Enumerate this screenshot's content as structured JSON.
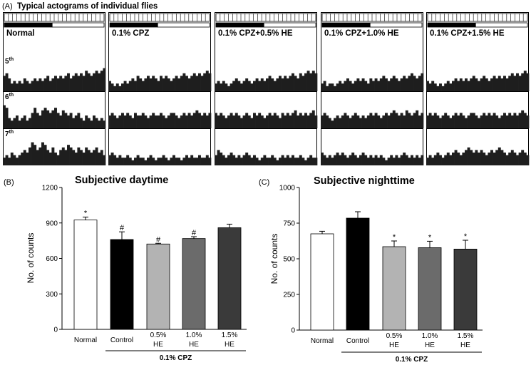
{
  "chart_data": [
    {
      "type": "bar",
      "kind": "actogram",
      "panel_label": "(A)",
      "title": "Typical actograms of individual flies",
      "day_labels": [
        {
          "num": "5",
          "suffix": "th"
        },
        {
          "num": "6",
          "suffix": "th"
        },
        {
          "num": "7",
          "suffix": "th"
        }
      ],
      "dark_fraction": 0.48,
      "activity_max": 10,
      "bar_color": "#1e1e1e",
      "panels": [
        {
          "label": "Normal",
          "days": [
            [
              6,
              7,
              5,
              3,
              4,
              3,
              4,
              3,
              5,
              4,
              3,
              4,
              5,
              4,
              5,
              4,
              5,
              6,
              4,
              5,
              6,
              5,
              6,
              5,
              6,
              7,
              5,
              6,
              7,
              6,
              7,
              6,
              8,
              7,
              6,
              7,
              8,
              7,
              8,
              9
            ],
            [
              9,
              8,
              4,
              3,
              4,
              5,
              3,
              4,
              5,
              3,
              4,
              6,
              8,
              6,
              5,
              7,
              8,
              7,
              6,
              7,
              8,
              6,
              5,
              7,
              6,
              5,
              6,
              4,
              5,
              6,
              4,
              3,
              5,
              4,
              3,
              5,
              4,
              3,
              4,
              3
            ],
            [
              3,
              4,
              3,
              5,
              4,
              3,
              4,
              5,
              6,
              5,
              7,
              9,
              8,
              6,
              7,
              9,
              8,
              6,
              5,
              7,
              5,
              4,
              6,
              7,
              6,
              8,
              7,
              6,
              5,
              7,
              6,
              5,
              7,
              6,
              5,
              6,
              7,
              5,
              6,
              4
            ]
          ]
        },
        {
          "label": "0.1% CPZ",
          "days": [
            [
              4,
              3,
              2,
              3,
              2,
              3,
              4,
              3,
              4,
              5,
              4,
              6,
              5,
              4,
              5,
              6,
              5,
              6,
              5,
              4,
              6,
              5,
              6,
              5,
              4,
              5,
              6,
              5,
              6,
              7,
              6,
              5,
              6,
              7,
              6,
              7,
              6,
              7,
              8,
              7
            ],
            [
              5,
              6,
              5,
              4,
              5,
              6,
              5,
              6,
              5,
              4,
              6,
              5,
              5,
              6,
              5,
              4,
              5,
              6,
              5,
              5,
              6,
              5,
              4,
              5,
              6,
              6,
              5,
              4,
              5,
              6,
              5,
              6,
              5,
              6,
              7,
              6,
              5,
              6,
              5,
              6
            ],
            [
              4,
              5,
              4,
              3,
              4,
              3,
              3,
              4,
              3,
              2,
              3,
              4,
              3,
              3,
              2,
              3,
              4,
              3,
              2,
              3,
              3,
              4,
              3,
              2,
              3,
              4,
              3,
              3,
              2,
              3,
              4,
              3,
              4,
              3,
              3,
              4,
              3,
              3,
              4,
              3
            ]
          ]
        },
        {
          "label": "0.1% CPZ+0.5% HE",
          "days": [
            [
              3,
              4,
              3,
              4,
              3,
              2,
              3,
              4,
              5,
              4,
              3,
              4,
              5,
              4,
              3,
              4,
              5,
              4,
              5,
              4,
              5,
              6,
              5,
              4,
              5,
              6,
              5,
              6,
              5,
              6,
              7,
              6,
              5,
              7,
              6,
              7,
              8,
              7,
              8,
              7
            ],
            [
              6,
              5,
              6,
              5,
              4,
              5,
              6,
              5,
              6,
              5,
              4,
              5,
              6,
              5,
              4,
              6,
              5,
              6,
              5,
              4,
              5,
              6,
              5,
              6,
              5,
              4,
              6,
              5,
              6,
              5,
              6,
              7,
              5,
              6,
              5,
              6,
              5,
              6,
              7,
              5
            ],
            [
              4,
              6,
              5,
              4,
              3,
              4,
              5,
              4,
              3,
              4,
              3,
              4,
              5,
              4,
              3,
              4,
              3,
              2,
              3,
              4,
              3,
              3,
              4,
              3,
              2,
              3,
              4,
              3,
              4,
              3,
              4,
              3,
              3,
              4,
              3,
              2,
              3,
              4,
              3,
              3
            ]
          ]
        },
        {
          "label": "0.1% CPZ+1.0% HE",
          "days": [
            [
              3,
              4,
              2,
              3,
              3,
              2,
              3,
              4,
              3,
              4,
              5,
              4,
              3,
              4,
              5,
              4,
              5,
              4,
              3,
              5,
              4,
              5,
              4,
              5,
              6,
              5,
              4,
              5,
              6,
              5,
              4,
              5,
              6,
              5,
              6,
              7,
              6,
              5,
              6,
              7
            ],
            [
              5,
              6,
              5,
              4,
              3,
              4,
              5,
              4,
              5,
              6,
              5,
              4,
              5,
              6,
              5,
              4,
              5,
              4,
              5,
              6,
              5,
              6,
              5,
              4,
              5,
              6,
              5,
              6,
              7,
              6,
              5,
              6,
              5,
              7,
              6,
              5,
              6,
              7,
              5,
              6
            ],
            [
              5,
              4,
              3,
              4,
              3,
              4,
              5,
              4,
              5,
              4,
              3,
              4,
              5,
              4,
              3,
              4,
              5,
              4,
              3,
              4,
              3,
              4,
              3,
              4,
              3,
              2,
              3,
              4,
              3,
              4,
              3,
              4,
              5,
              4,
              3,
              4,
              3,
              4,
              3,
              4
            ]
          ]
        },
        {
          "label": "0.1% CPZ+1.5% HE",
          "days": [
            [
              4,
              3,
              4,
              3,
              2,
              3,
              2,
              3,
              4,
              3,
              4,
              5,
              4,
              5,
              4,
              5,
              4,
              5,
              6,
              5,
              4,
              5,
              6,
              5,
              4,
              5,
              6,
              5,
              6,
              5,
              6,
              5,
              6,
              7,
              6,
              7,
              6,
              7,
              8,
              7
            ],
            [
              5,
              6,
              5,
              6,
              5,
              4,
              5,
              6,
              5,
              4,
              5,
              6,
              5,
              6,
              5,
              4,
              5,
              6,
              6,
              5,
              4,
              5,
              6,
              5,
              6,
              5,
              6,
              5,
              4,
              5,
              6,
              5,
              6,
              5,
              6,
              5,
              6,
              7,
              6,
              5
            ],
            [
              3,
              4,
              3,
              4,
              5,
              4,
              3,
              4,
              5,
              4,
              5,
              6,
              5,
              4,
              5,
              6,
              7,
              6,
              5,
              6,
              5,
              6,
              5,
              4,
              5,
              6,
              5,
              6,
              7,
              6,
              5,
              4,
              5,
              6,
              5,
              4,
              5,
              6,
              5,
              4
            ]
          ]
        }
      ]
    },
    {
      "type": "bar",
      "panel_label": "(B)",
      "title": "Subjective daytime",
      "ylabel": "No. of counts",
      "ylim": [
        0,
        1200
      ],
      "yticks": [
        0,
        300,
        600,
        900,
        1200
      ],
      "categories": [
        "Normal",
        "Control",
        "0.5% HE",
        "1.0% HE",
        "1.5% HE"
      ],
      "values": [
        925,
        760,
        722,
        768,
        860
      ],
      "errors": [
        25,
        65,
        6,
        16,
        30
      ],
      "annotations": [
        "*",
        "#",
        "#",
        "#",
        ""
      ],
      "colors": [
        "#ffffff",
        "#000000",
        "#b3b3b3",
        "#6b6b6b",
        "#3a3a3a"
      ],
      "group": {
        "label": "0.1% CPZ",
        "first": 1,
        "last": 4
      }
    },
    {
      "type": "bar",
      "panel_label": "(C)",
      "title": "Subjective nighttime",
      "ylabel": "No. of counts",
      "ylim": [
        0,
        1000
      ],
      "yticks": [
        0,
        250,
        500,
        750,
        1000
      ],
      "categories": [
        "Normal",
        "Control",
        "0.5% HE",
        "1.0% HE",
        "1.5% HE"
      ],
      "values": [
        675,
        785,
        585,
        578,
        568
      ],
      "errors": [
        18,
        45,
        40,
        45,
        62
      ],
      "annotations": [
        "",
        "",
        "*",
        "*",
        "*"
      ],
      "colors": [
        "#ffffff",
        "#000000",
        "#b3b3b3",
        "#6b6b6b",
        "#3a3a3a"
      ],
      "group": {
        "label": "0.1% CPZ",
        "first": 1,
        "last": 4
      }
    }
  ]
}
